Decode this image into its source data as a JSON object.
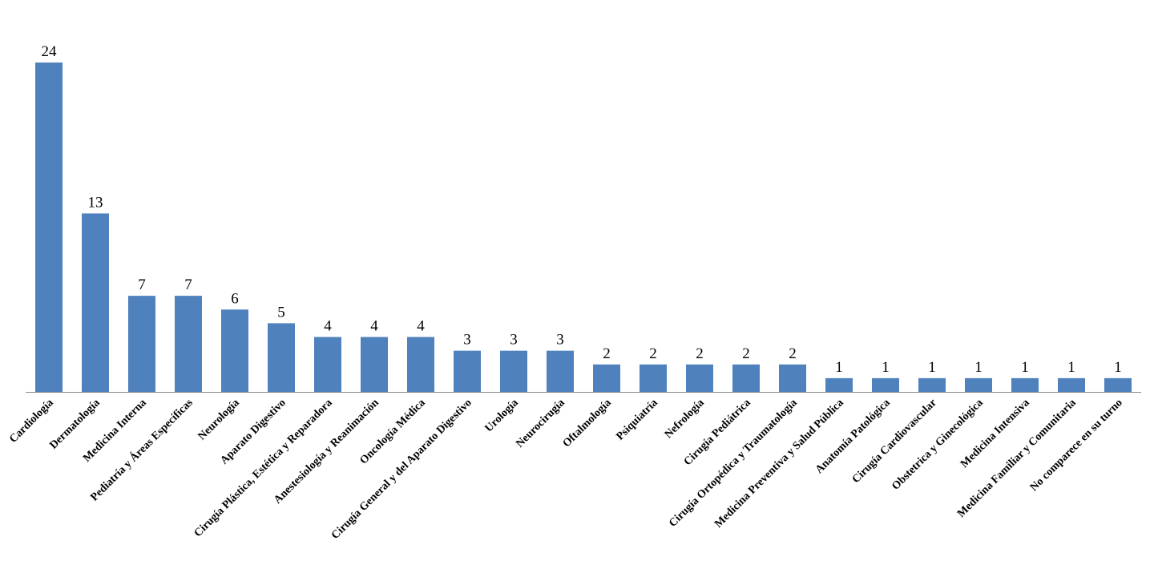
{
  "chart_data": {
    "type": "bar",
    "categories": [
      "Cardiología",
      "Dermatología",
      "Medicina Interna",
      "Pediatría y Áreas Específicas",
      "Neurología",
      "Aparato Digestivo",
      "Cirugía Plástica, Estética y Reparadora",
      "Anestesiología y Reanimación",
      "Oncología Médica",
      "Cirugía General y del Aparato Digestivo",
      "Urología",
      "Neurocirugía",
      "Oftalmología",
      "Psiquiatría",
      "Nefrología",
      "Cirugía Pediátrica",
      "Cirugía Ortopédica y Traumatología",
      "Medicina Preventiva y Salud Pública",
      "Anatomía Patológica",
      "Cirugía Cardiovascular",
      "Obstetrica y Ginecológica",
      "Medicina Intensiva",
      "Medicina Familiar y Comunitaria",
      "No comparece en su turno"
    ],
    "values": [
      24,
      13,
      7,
      7,
      6,
      5,
      4,
      4,
      4,
      3,
      3,
      3,
      2,
      2,
      2,
      2,
      2,
      1,
      1,
      1,
      1,
      1,
      1,
      1
    ],
    "color": "#4f81bd"
  }
}
